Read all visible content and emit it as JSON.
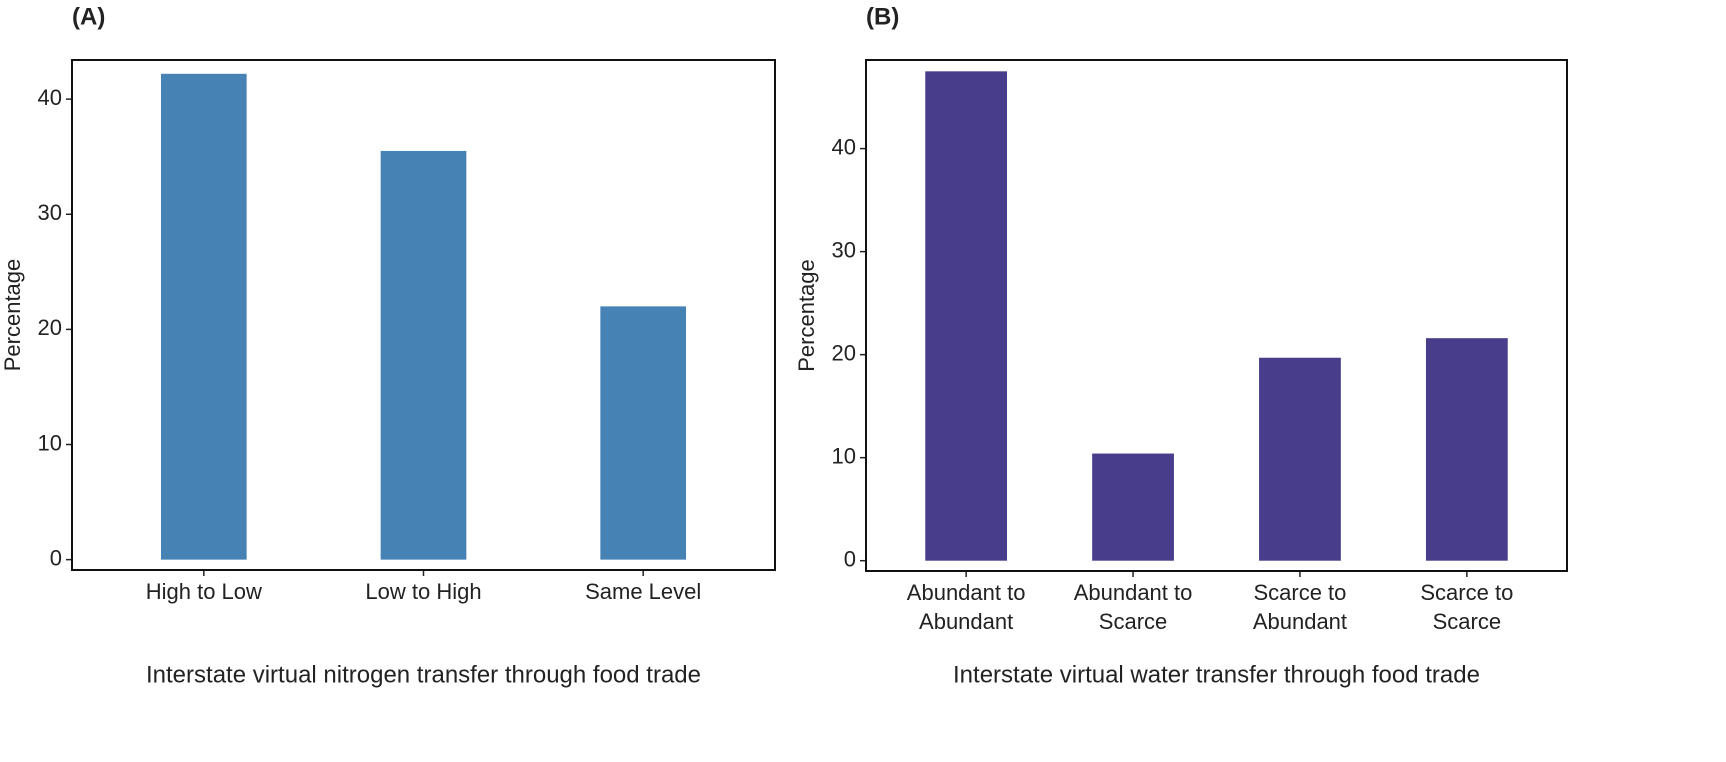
{
  "chart_data": [
    {
      "type": "bar",
      "title": "(A)",
      "xlabel": "Interstate virtual nitrogen transfer through food trade",
      "ylabel": "Percentage",
      "categories": [
        "High to Low",
        "Low to High",
        "Same Level"
      ],
      "values": [
        42.2,
        35.5,
        22.0
      ],
      "color": "#4682b4",
      "ylim": [
        -0.9,
        43.4
      ],
      "yticks": [
        0,
        10,
        20,
        30,
        40
      ]
    },
    {
      "type": "bar",
      "title": "(B)",
      "xlabel": "Interstate virtual water transfer through food trade",
      "ylabel": "Percentage",
      "categories": [
        "Abundant to\nAbundant",
        "Abundant to\nScarce",
        "Scarce to\nAbundant",
        "Scarce to\nScarce"
      ],
      "values": [
        47.5,
        10.4,
        19.7,
        21.6
      ],
      "color": "#483d8b",
      "ylim": [
        -1.0,
        48.6
      ],
      "yticks": [
        0,
        10,
        20,
        30,
        40
      ]
    }
  ]
}
